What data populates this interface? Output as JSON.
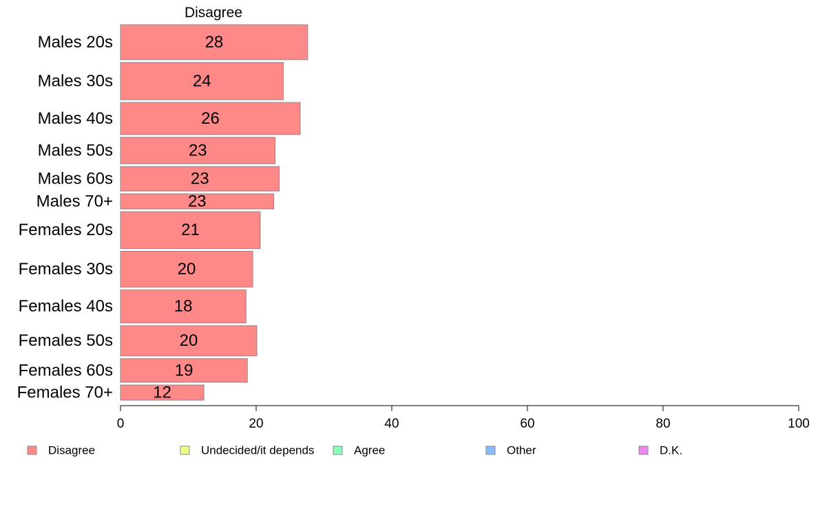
{
  "chart_data": {
    "type": "bar",
    "orientation": "horizontal",
    "title": "Disagree",
    "categories": [
      "Males 20s",
      "Males 30s",
      "Males 40s",
      "Males 50s",
      "Males 60s",
      "Males 70+",
      "Females 20s",
      "Females 30s",
      "Females 40s",
      "Females 50s",
      "Females 60s",
      "Females 70+"
    ],
    "values": [
      27.6,
      24.0,
      26.5,
      22.8,
      23.4,
      22.6,
      20.6,
      19.5,
      18.5,
      20.1,
      18.7,
      12.3
    ],
    "value_labels": [
      "28",
      "24",
      "26",
      "23",
      "23",
      "23",
      "21",
      "20",
      "18",
      "20",
      "19",
      "12"
    ],
    "relative_widths": [
      7.4,
      7.9,
      6.8,
      5.6,
      5.2,
      3.2,
      7.8,
      7.6,
      7.0,
      6.4,
      5.0,
      3.2
    ],
    "xlim": [
      0,
      100
    ],
    "xticks": [
      "0",
      "20",
      "40",
      "60",
      "80",
      "100"
    ],
    "xtick_values": [
      0,
      20,
      40,
      60,
      80,
      100
    ],
    "xlabel": "",
    "ylabel": "",
    "grid": false,
    "legend_placement": "bottom",
    "legend": [
      {
        "label": "Disagree",
        "color": "#ff8888"
      },
      {
        "label": "Undecided/it depends",
        "color": "#eeff88"
      },
      {
        "label": "Agree",
        "color": "#88ffbb"
      },
      {
        "label": "Other",
        "color": "#88bbff"
      },
      {
        "label": "D.K.",
        "color": "#ee88ee"
      }
    ],
    "bar_color": "#ff8888",
    "bar_stroke": "#888888"
  }
}
